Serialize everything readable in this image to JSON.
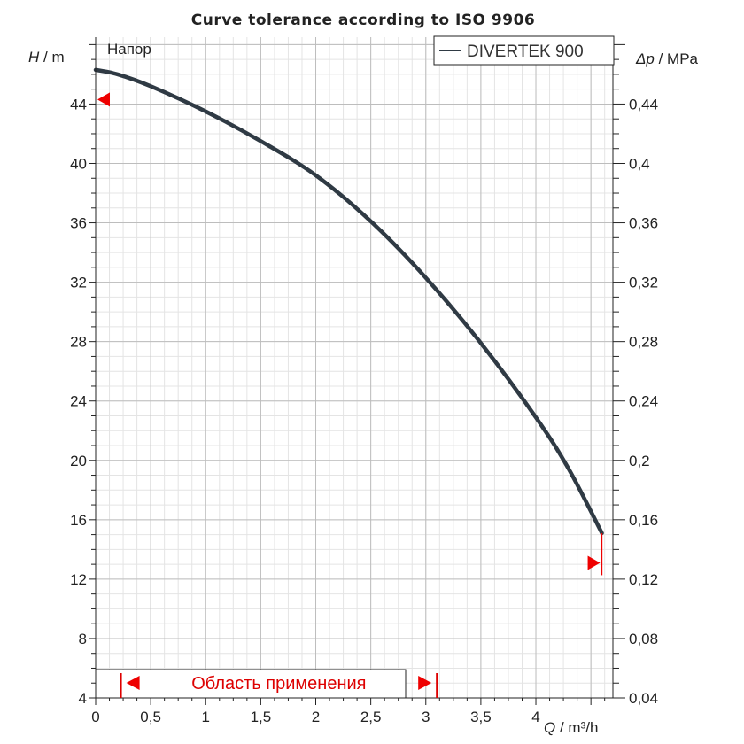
{
  "chart_data": {
    "type": "line",
    "title": "Curve tolerance according to ISO 9906",
    "panel_label": "Напор",
    "xlabel_var": "Q",
    "xlabel_unit": " / m³/h",
    "ylabel_var": "H",
    "ylabel_unit": " / m",
    "y2label_var": "Δp",
    "y2label_unit": " / MPa",
    "xlim": [
      0,
      4.7
    ],
    "ylim": [
      4,
      48.5
    ],
    "x_major_ticks": [
      0,
      0.5,
      1,
      1.5,
      2,
      2.5,
      3,
      3.5,
      4
    ],
    "x_tick_labels": [
      "0",
      "0,5",
      "1",
      "1,5",
      "2",
      "2,5",
      "3",
      "3,5",
      "4"
    ],
    "y_major_ticks": [
      4,
      8,
      12,
      16,
      20,
      24,
      28,
      32,
      36,
      40,
      44
    ],
    "y_tick_labels": [
      "4",
      "8",
      "12",
      "16",
      "20",
      "24",
      "28",
      "32",
      "36",
      "40",
      "44"
    ],
    "y2_major_ticks": [
      0.04,
      0.08,
      0.12,
      0.16,
      0.2,
      0.24,
      0.28,
      0.32,
      0.36,
      0.4,
      0.44
    ],
    "y2_tick_labels": [
      "0,04",
      "0,08",
      "0,12",
      "0,16",
      "0,2",
      "0,24",
      "0,28",
      "0,32",
      "0,36",
      "0,4",
      "0,44"
    ],
    "grid": true,
    "legend_position": "top-right",
    "series": [
      {
        "name": "DIVERTEK 900",
        "color": "#2f3a44",
        "x": [
          0,
          0.2,
          0.5,
          1,
          1.5,
          2,
          2.5,
          3,
          3.5,
          4,
          4.3,
          4.6
        ],
        "y": [
          46.3,
          46.0,
          45.2,
          43.5,
          41.5,
          39.2,
          36.1,
          32.3,
          27.9,
          22.9,
          19.4,
          15.1
        ]
      }
    ],
    "tolerance_markers": [
      {
        "x": 0,
        "y": 44.3,
        "direction": "left"
      },
      {
        "x": 4.6,
        "y": 13.1,
        "direction": "right"
      }
    ],
    "application_range": {
      "label": "Область применения",
      "x_start": 0.23,
      "x_end": 3.1
    },
    "colors": {
      "curve": "#2f3a44",
      "marker": "#ee0000",
      "range_text": "#dd0000",
      "grid_major": "#bdbdbd",
      "grid_minor": "#e4e4e4"
    }
  }
}
